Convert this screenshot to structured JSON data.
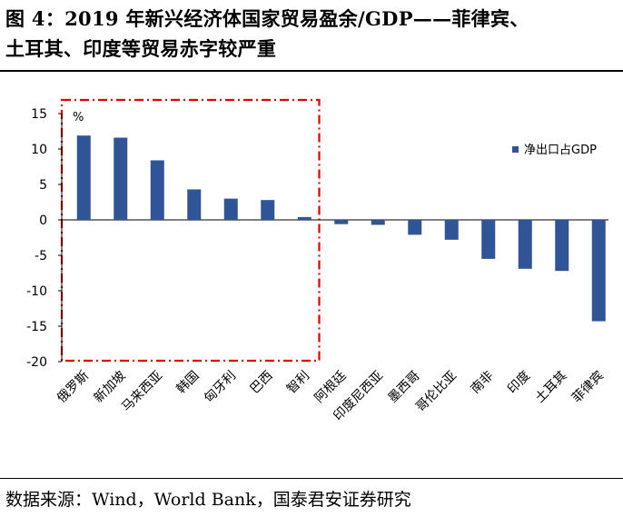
{
  "title": {
    "line1": "图 4：2019 年新兴经济体国家贸易盈余/GDP——菲律宾、",
    "line2": "土耳其、印度等贸易赤字较严重"
  },
  "source": "数据来源：Wind，World Bank，国泰君安证券研究",
  "colors": {
    "bar": "#2f5597",
    "highlight": "#e00000",
    "axis": "#000000"
  },
  "chart_data": {
    "type": "bar",
    "unit_label": "%",
    "categories": [
      "俄罗斯",
      "新加坡",
      "马来西亚",
      "韩国",
      "匈牙利",
      "巴西",
      "智利",
      "阿根廷",
      "印度尼西亚",
      "墨西哥",
      "哥伦比亚",
      "南非",
      "印度",
      "土耳其",
      "菲律宾"
    ],
    "series": [
      {
        "name": "净出口占GDP",
        "values": [
          11.9,
          11.6,
          8.4,
          4.3,
          3.0,
          2.8,
          0.4,
          -0.6,
          -0.7,
          -2.1,
          -2.8,
          -5.5,
          -6.9,
          -7.2,
          -14.3
        ]
      }
    ],
    "ylim": [
      -20,
      15
    ],
    "yticks": [
      15,
      10,
      5,
      0,
      -5,
      -10,
      -15,
      -20
    ],
    "legend_position": "top-right",
    "highlight_range": {
      "from": "俄罗斯",
      "to": "智利",
      "style": "red dash-dot box"
    }
  }
}
